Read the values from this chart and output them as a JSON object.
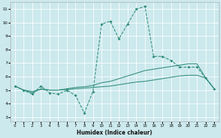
{
  "title": "",
  "xlabel": "Humidex (Indice chaleur)",
  "ylabel": "",
  "bg_color": "#cce9ed",
  "grid_color": "#ffffff",
  "line_color": "#2e8b7a",
  "xlim": [
    -0.5,
    23.5
  ],
  "ylim": [
    2.7,
    11.5
  ],
  "xticks": [
    0,
    1,
    2,
    3,
    4,
    5,
    6,
    7,
    8,
    9,
    10,
    11,
    12,
    13,
    14,
    15,
    16,
    17,
    18,
    19,
    20,
    21,
    22,
    23
  ],
  "yticks": [
    3,
    4,
    5,
    6,
    7,
    8,
    9,
    10,
    11
  ],
  "series": [
    {
      "x": [
        0,
        1,
        2,
        3,
        4,
        5,
        6,
        7,
        8,
        9,
        10,
        11,
        12,
        13,
        14,
        15,
        16,
        17,
        18,
        19,
        20,
        21,
        22,
        23
      ],
      "y": [
        5.3,
        5.0,
        4.7,
        5.3,
        4.8,
        4.7,
        5.0,
        4.6,
        3.3,
        4.9,
        9.9,
        10.1,
        8.8,
        9.9,
        11.0,
        11.2,
        7.5,
        7.5,
        7.2,
        6.7,
        6.7,
        6.7,
        5.9,
        5.1
      ],
      "style": "--",
      "marker": "D",
      "markersize": 1.8,
      "linewidth": 0.8
    },
    {
      "x": [
        0,
        1,
        2,
        3,
        4,
        5,
        6,
        7,
        8,
        9,
        10,
        11,
        12,
        13,
        14,
        15,
        16,
        17,
        18,
        19,
        20,
        21,
        22,
        23
      ],
      "y": [
        5.3,
        5.0,
        4.8,
        5.1,
        5.0,
        5.0,
        5.1,
        5.2,
        5.25,
        5.35,
        5.55,
        5.65,
        5.85,
        6.05,
        6.25,
        6.45,
        6.55,
        6.65,
        6.75,
        6.85,
        6.95,
        6.95,
        5.9,
        5.1
      ],
      "style": "-",
      "marker": null,
      "linewidth": 0.8
    },
    {
      "x": [
        0,
        1,
        2,
        3,
        4,
        5,
        6,
        7,
        8,
        9,
        10,
        11,
        12,
        13,
        14,
        15,
        16,
        17,
        18,
        19,
        20,
        21,
        22,
        23
      ],
      "y": [
        5.3,
        5.0,
        4.9,
        5.05,
        5.0,
        5.0,
        5.05,
        5.1,
        5.15,
        5.2,
        5.25,
        5.3,
        5.4,
        5.5,
        5.6,
        5.65,
        5.75,
        5.85,
        5.95,
        6.05,
        6.1,
        6.1,
        5.9,
        5.1
      ],
      "style": "-",
      "marker": null,
      "linewidth": 0.8
    }
  ]
}
